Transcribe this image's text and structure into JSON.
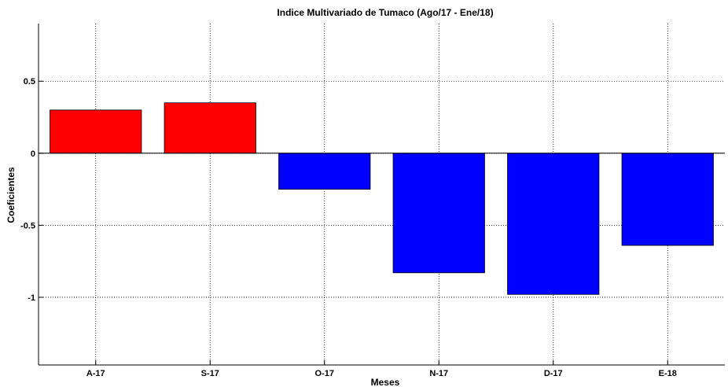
{
  "chart_data": {
    "type": "bar",
    "title": "Indice Multivariado de Tumaco (Ago/17  - Ene/18)",
    "xlabel": "Meses",
    "ylabel": "Coeficientes",
    "categories": [
      "A-17",
      "S-17",
      "O-17",
      "N-17",
      "D-17",
      "E-18"
    ],
    "values": [
      0.3,
      0.35,
      -0.25,
      -0.83,
      -0.98,
      -0.64
    ],
    "ylim": [
      -1.47,
      0.9
    ],
    "yticks": [
      0.5,
      0,
      -0.5,
      -1
    ],
    "ytick_labels": [
      "0.5",
      "0",
      "-0.5",
      "-1"
    ],
    "grid": true,
    "positive_color": "#ff0000",
    "negative_color": "#0000ff"
  }
}
